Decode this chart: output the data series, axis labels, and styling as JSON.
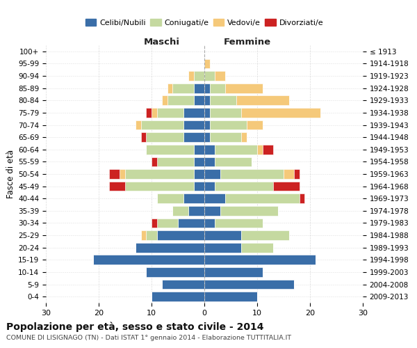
{
  "age_groups": [
    "0-4",
    "5-9",
    "10-14",
    "15-19",
    "20-24",
    "25-29",
    "30-34",
    "35-39",
    "40-44",
    "45-49",
    "50-54",
    "55-59",
    "60-64",
    "65-69",
    "70-74",
    "75-79",
    "80-84",
    "85-89",
    "90-94",
    "95-99",
    "100+"
  ],
  "birth_years": [
    "2009-2013",
    "2004-2008",
    "1999-2003",
    "1994-1998",
    "1989-1993",
    "1984-1988",
    "1979-1983",
    "1974-1978",
    "1969-1973",
    "1964-1968",
    "1959-1963",
    "1954-1958",
    "1949-1953",
    "1944-1948",
    "1939-1943",
    "1934-1938",
    "1929-1933",
    "1924-1928",
    "1919-1923",
    "1914-1918",
    "≤ 1913"
  ],
  "maschi": {
    "celibi": [
      10,
      8,
      11,
      21,
      13,
      9,
      5,
      3,
      4,
      2,
      2,
      2,
      2,
      4,
      4,
      4,
      2,
      2,
      0,
      0,
      0
    ],
    "coniugati": [
      0,
      0,
      0,
      0,
      0,
      2,
      4,
      3,
      5,
      13,
      13,
      7,
      9,
      7,
      8,
      5,
      5,
      4,
      2,
      0,
      0
    ],
    "vedovi": [
      0,
      0,
      0,
      0,
      0,
      1,
      0,
      0,
      0,
      0,
      1,
      0,
      0,
      0,
      1,
      1,
      1,
      1,
      1,
      0,
      0
    ],
    "divorziati": [
      0,
      0,
      0,
      0,
      0,
      0,
      1,
      0,
      0,
      3,
      2,
      1,
      0,
      1,
      0,
      1,
      0,
      0,
      0,
      0,
      0
    ]
  },
  "femmine": {
    "nubili": [
      10,
      17,
      11,
      21,
      7,
      7,
      2,
      3,
      4,
      2,
      3,
      2,
      2,
      1,
      1,
      1,
      1,
      1,
      0,
      0,
      0
    ],
    "coniugate": [
      0,
      0,
      0,
      0,
      6,
      9,
      9,
      11,
      14,
      11,
      12,
      7,
      8,
      6,
      7,
      6,
      5,
      3,
      2,
      0,
      0
    ],
    "vedove": [
      0,
      0,
      0,
      0,
      0,
      0,
      0,
      0,
      0,
      0,
      2,
      0,
      1,
      1,
      3,
      15,
      10,
      7,
      2,
      1,
      0
    ],
    "divorziate": [
      0,
      0,
      0,
      0,
      0,
      0,
      0,
      0,
      1,
      5,
      1,
      0,
      2,
      0,
      0,
      0,
      0,
      0,
      0,
      0,
      0
    ]
  },
  "colors": {
    "celibi": "#3a6ea8",
    "coniugati": "#c5d9a0",
    "vedovi": "#f5c97a",
    "divorziati": "#cc2222"
  },
  "xlim": 30,
  "title": "Popolazione per età, sesso e stato civile - 2014",
  "subtitle": "COMUNE DI LISIGNAGO (TN) - Dati ISTAT 1° gennaio 2014 - Elaborazione TUTTITALIA.IT",
  "ylabel_left": "Fasce di età",
  "header_left": "Maschi",
  "header_right": "Femmine",
  "legend_labels": [
    "Celibi/Nubili",
    "Coniugati/e",
    "Vedovi/e",
    "Divorziati/e"
  ],
  "background_color": "#ffffff"
}
